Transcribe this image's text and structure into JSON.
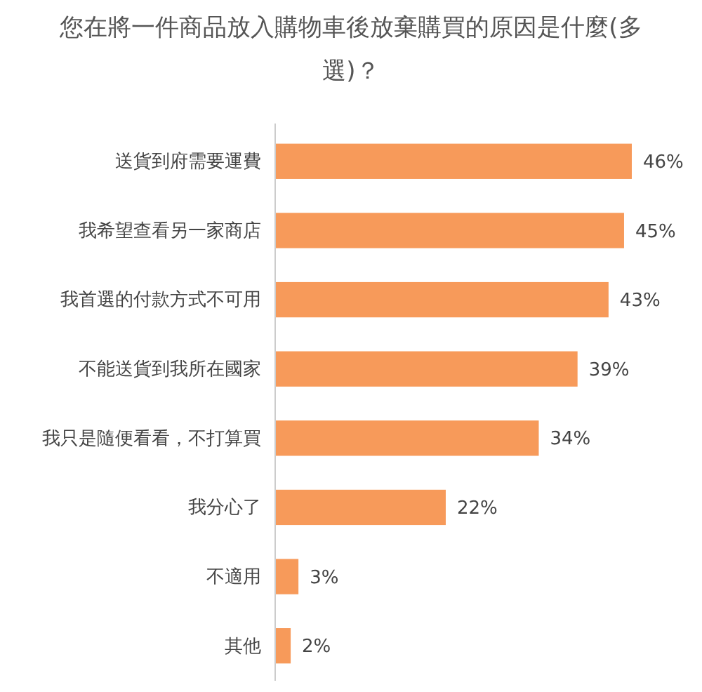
{
  "chart_data": {
    "type": "bar",
    "orientation": "horizontal",
    "title": "您在將一件商品放入購物車後放棄購買的原因是什麼(多選)？",
    "categories": [
      "送貨到府需要運費",
      "我希望查看另一家商店",
      "我首選的付款方式不可用",
      "不能送貨到我所在國家",
      "我只是隨便看看，不打算買",
      "我分心了",
      "不適用",
      "其他"
    ],
    "values": [
      46,
      45,
      43,
      39,
      34,
      22,
      3,
      2
    ],
    "value_labels": [
      "46%",
      "45%",
      "43%",
      "39%",
      "34%",
      "22%",
      "3%",
      "2%"
    ],
    "color": "#f79a5a"
  }
}
